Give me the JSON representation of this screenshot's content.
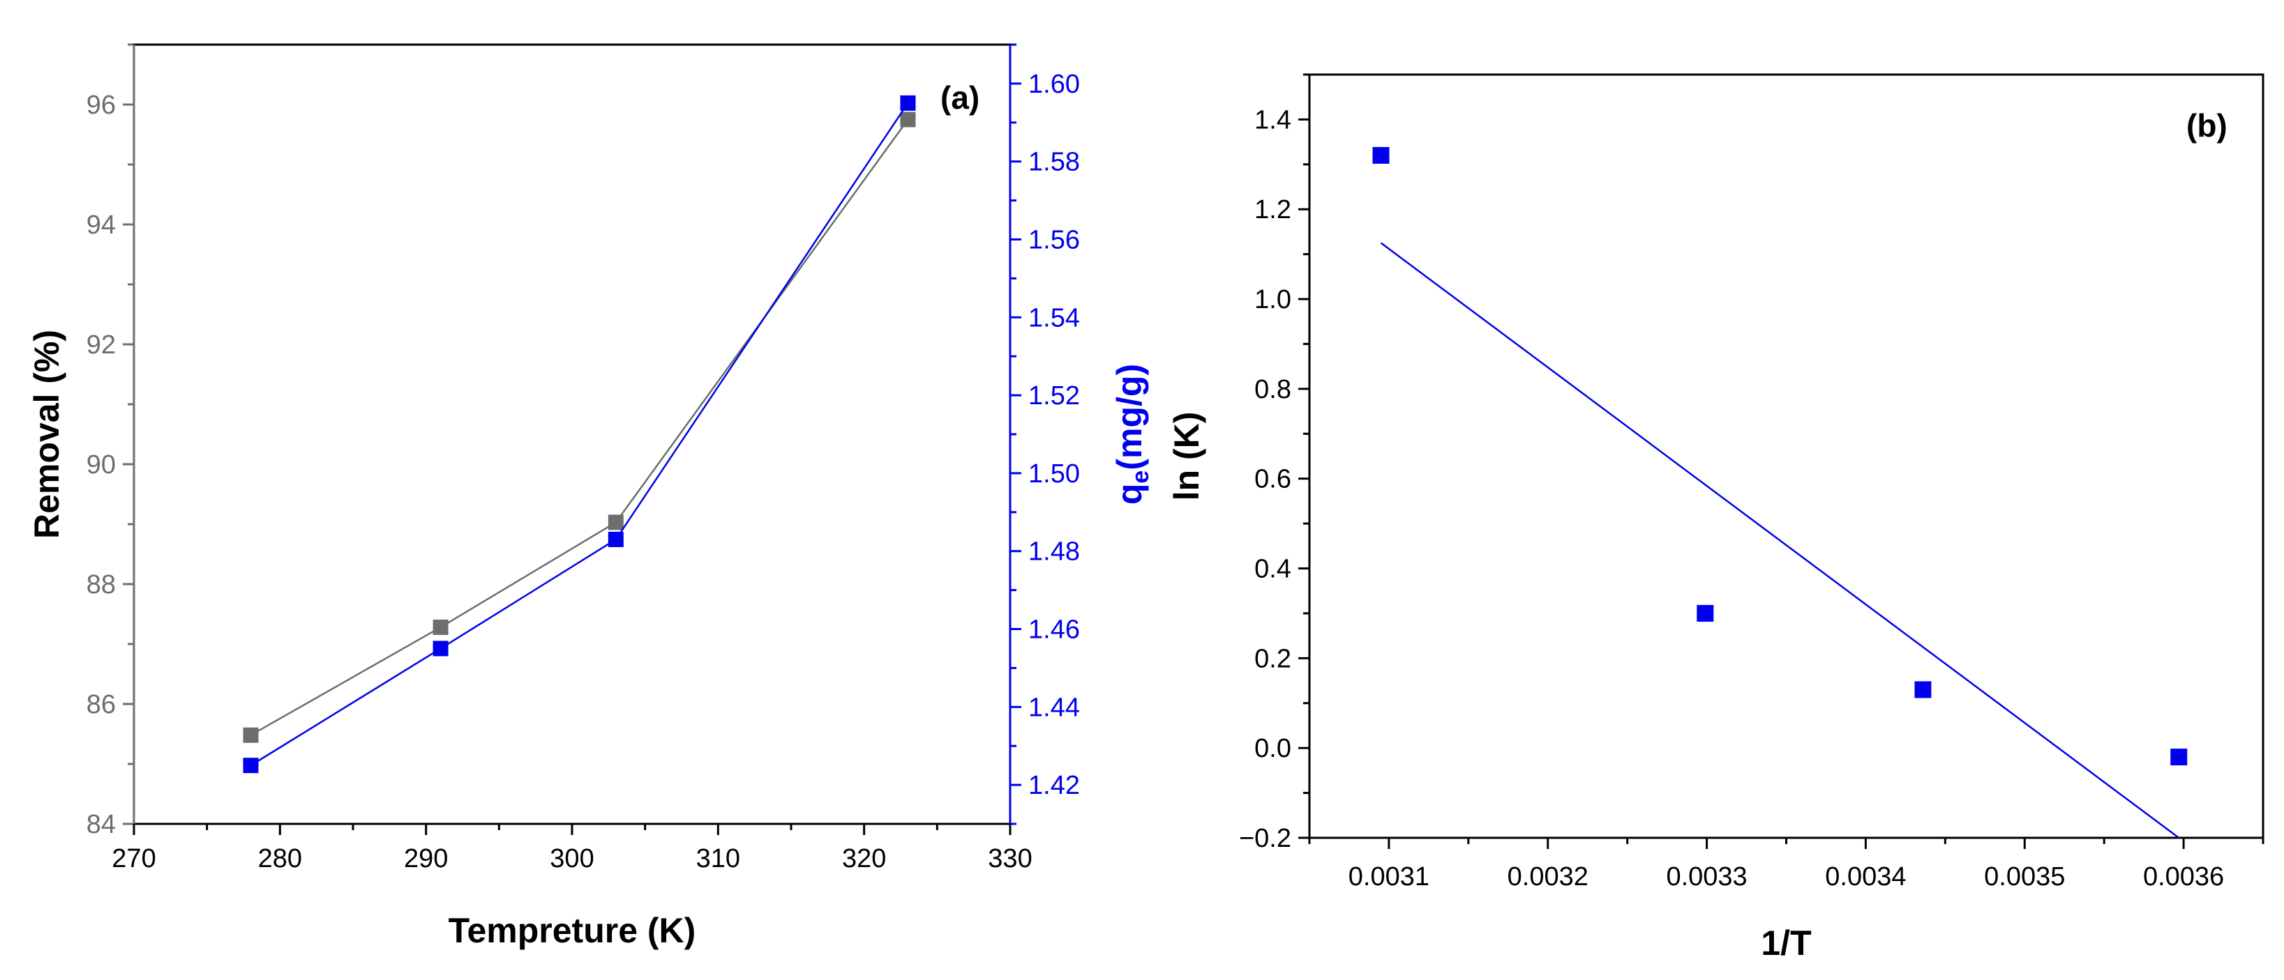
{
  "chart_data": [
    {
      "type": "line",
      "panel_label": "(a)",
      "xlabel": "Tempreture (K)",
      "ylabel": "Removal (%)",
      "y2label_main": "q",
      "y2label_sub": "e",
      "y2label_rest": "(mg/g)",
      "xlim": [
        270,
        330
      ],
      "ylim": [
        84,
        97
      ],
      "y2lim": [
        1.41,
        1.61
      ],
      "xticks": [
        270,
        280,
        290,
        300,
        310,
        320,
        330
      ],
      "yticks": [
        84,
        86,
        88,
        90,
        92,
        94,
        96
      ],
      "y2ticks": [
        "1.42",
        "1.44",
        "1.46",
        "1.48",
        "1.50",
        "1.52",
        "1.54",
        "1.56",
        "1.58",
        "1.60"
      ],
      "series": [
        {
          "axis": "left",
          "color": "#6d6d6d",
          "marker": "square",
          "x": [
            278,
            291,
            303,
            323
          ],
          "values": [
            85.48,
            87.28,
            89.03,
            95.75
          ]
        },
        {
          "axis": "right",
          "color": "#0000ee",
          "marker": "square",
          "x": [
            278,
            291,
            303,
            323
          ],
          "values": [
            1.425,
            1.455,
            1.483,
            1.595
          ]
        }
      ],
      "colors": {
        "left_axis": "#6d6d6d",
        "right_axis": "#0000ee",
        "frame": "#000000"
      }
    },
    {
      "type": "scatter",
      "panel_label": "(b)",
      "xlabel": "1/T",
      "ylabel": "ln (K)",
      "xlim": [
        0.00305,
        0.00365
      ],
      "ylim": [
        -0.2,
        1.5
      ],
      "xticks": [
        "0.0031",
        "0.0032",
        "0.0033",
        "0.0034",
        "0.0035",
        "0.0036"
      ],
      "yticks": [
        "−0.2",
        "0.0",
        "0.2",
        "0.4",
        "0.6",
        "0.8",
        "1.0",
        "1.2",
        "1.4"
      ],
      "series": [
        {
          "marker": "square",
          "color": "#0000ee",
          "x": [
            0.003095,
            0.003299,
            0.003436,
            0.003597
          ],
          "values": [
            1.32,
            0.3,
            0.13,
            -0.02
          ]
        }
      ],
      "fit_line": {
        "color": "#0000ee",
        "x": [
          0.003095,
          0.003597
        ],
        "values": [
          1.125,
          -0.2
        ]
      }
    }
  ]
}
